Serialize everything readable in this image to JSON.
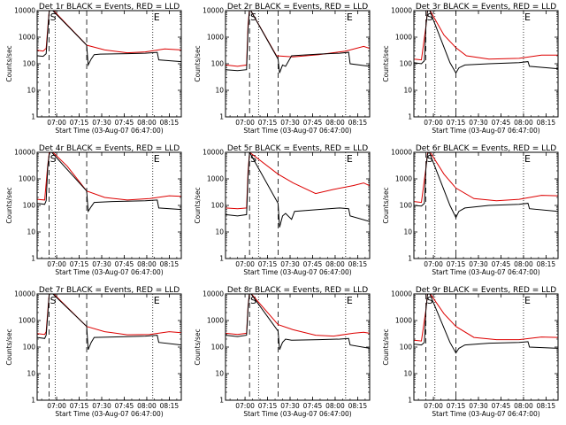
{
  "chart_data": {
    "type": "line",
    "scale": "log",
    "ylabel": "Counts/sec",
    "xlabel": "Start Time (03-Aug-07 06:47:00)",
    "ylim": [
      1,
      10000
    ],
    "xlim_minutes": [
      0,
      96
    ],
    "y_ticks": [
      1,
      10,
      100,
      1000,
      10000
    ],
    "y_tick_labels": [
      "1",
      "10",
      "100",
      "1000",
      "10000"
    ],
    "x_ticks": [
      13,
      28,
      43,
      58,
      73,
      88
    ],
    "x_tick_labels": [
      "07:00",
      "07:15",
      "07:30",
      "07:45",
      "08:00",
      "08:15"
    ],
    "legend": {
      "black": "Events",
      "red": "LLD"
    },
    "series_colors": {
      "events": "#000000",
      "lld": "#dd0000"
    },
    "panels": [
      {
        "title": "Det 1r BLACK = Events, RED = LLD",
        "markers": [
          {
            "t": 8,
            "label": "S",
            "style": "dashed"
          },
          {
            "t": 12,
            "label": "",
            "style": "dotted"
          },
          {
            "t": 33,
            "label": "",
            "style": "dashed"
          },
          {
            "t": 77,
            "label": "E",
            "style": "dotted"
          }
        ],
        "events": [
          [
            0,
            200
          ],
          [
            4,
            190
          ],
          [
            6,
            240
          ],
          [
            7,
            1500
          ],
          [
            8,
            9000
          ],
          [
            9,
            12000
          ],
          [
            33,
            500
          ],
          [
            34,
            90
          ],
          [
            36,
            150
          ],
          [
            38,
            220
          ],
          [
            42,
            230
          ],
          [
            60,
            240
          ],
          [
            72,
            250
          ],
          [
            80,
            270
          ],
          [
            81,
            140
          ],
          [
            96,
            120
          ]
        ],
        "lld": [
          [
            0,
            320
          ],
          [
            4,
            300
          ],
          [
            6,
            380
          ],
          [
            7,
            2000
          ],
          [
            8,
            9500
          ],
          [
            9,
            13000
          ],
          [
            33,
            500
          ],
          [
            45,
            330
          ],
          [
            60,
            260
          ],
          [
            72,
            280
          ],
          [
            85,
            360
          ],
          [
            96,
            330
          ]
        ]
      },
      {
        "title": "Det 2r BLACK = Events, RED = LLD",
        "markers": [
          {
            "t": 16,
            "label": "S",
            "style": "dashed"
          },
          {
            "t": 22,
            "label": "",
            "style": "dotted"
          },
          {
            "t": 35,
            "label": "",
            "style": "dashed"
          },
          {
            "t": 80,
            "label": "E",
            "style": "dotted"
          }
        ],
        "events": [
          [
            0,
            60
          ],
          [
            8,
            55
          ],
          [
            14,
            60
          ],
          [
            15,
            2000
          ],
          [
            16,
            12000
          ],
          [
            35,
            150
          ],
          [
            36,
            45
          ],
          [
            38,
            90
          ],
          [
            40,
            80
          ],
          [
            44,
            200
          ],
          [
            62,
            230
          ],
          [
            76,
            250
          ],
          [
            82,
            270
          ],
          [
            83,
            100
          ],
          [
            96,
            80
          ]
        ],
        "lld": [
          [
            0,
            90
          ],
          [
            8,
            80
          ],
          [
            14,
            90
          ],
          [
            15,
            3000
          ],
          [
            16,
            12000
          ],
          [
            34,
            200
          ],
          [
            45,
            180
          ],
          [
            62,
            220
          ],
          [
            80,
            300
          ],
          [
            92,
            450
          ],
          [
            96,
            380
          ]
        ]
      },
      {
        "title": "Det 3r BLACK = Events, RED = LLD",
        "markers": [
          {
            "t": 8,
            "label": "S",
            "style": "dashed"
          },
          {
            "t": 14,
            "label": "",
            "style": "dotted"
          },
          {
            "t": 28,
            "label": "",
            "style": "dashed"
          },
          {
            "t": 73,
            "label": "E",
            "style": "dotted"
          }
        ],
        "events": [
          [
            0,
            110
          ],
          [
            5,
            100
          ],
          [
            7,
            130
          ],
          [
            8,
            2500
          ],
          [
            9,
            9000
          ],
          [
            10,
            12000
          ],
          [
            24,
            110
          ],
          [
            28,
            45
          ],
          [
            30,
            70
          ],
          [
            34,
            90
          ],
          [
            50,
            100
          ],
          [
            70,
            110
          ],
          [
            76,
            120
          ],
          [
            77,
            80
          ],
          [
            96,
            65
          ]
        ],
        "lld": [
          [
            0,
            150
          ],
          [
            5,
            140
          ],
          [
            8,
            2500
          ],
          [
            9,
            9500
          ],
          [
            10,
            12000
          ],
          [
            20,
            1200
          ],
          [
            28,
            400
          ],
          [
            35,
            200
          ],
          [
            50,
            150
          ],
          [
            70,
            160
          ],
          [
            85,
            210
          ],
          [
            96,
            210
          ]
        ]
      },
      {
        "title": "Det 4r BLACK = Events, RED = LLD",
        "markers": [
          {
            "t": 8,
            "label": "S",
            "style": "dashed"
          },
          {
            "t": 12,
            "label": "",
            "style": "dotted"
          },
          {
            "t": 33,
            "label": "",
            "style": "dashed"
          },
          {
            "t": 77,
            "label": "E",
            "style": "dotted"
          }
        ],
        "events": [
          [
            0,
            120
          ],
          [
            5,
            110
          ],
          [
            6,
            150
          ],
          [
            7,
            2500
          ],
          [
            8,
            8000
          ],
          [
            9,
            11000
          ],
          [
            33,
            350
          ],
          [
            34,
            60
          ],
          [
            36,
            90
          ],
          [
            38,
            130
          ],
          [
            50,
            140
          ],
          [
            72,
            150
          ],
          [
            80,
            160
          ],
          [
            81,
            80
          ],
          [
            96,
            70
          ]
        ],
        "lld": [
          [
            0,
            170
          ],
          [
            5,
            160
          ],
          [
            7,
            3000
          ],
          [
            8,
            9000
          ],
          [
            9,
            12000
          ],
          [
            20,
            3000
          ],
          [
            33,
            350
          ],
          [
            45,
            200
          ],
          [
            60,
            160
          ],
          [
            75,
            180
          ],
          [
            88,
            230
          ],
          [
            96,
            220
          ]
        ]
      },
      {
        "title": "Det 5r BLACK = Events, RED = LLD",
        "markers": [
          {
            "t": 16,
            "label": "S",
            "style": "dashed"
          },
          {
            "t": 22,
            "label": "",
            "style": "dotted"
          },
          {
            "t": 35,
            "label": "",
            "style": "dashed"
          },
          {
            "t": 80,
            "label": "E",
            "style": "dotted"
          }
        ],
        "events": [
          [
            0,
            45
          ],
          [
            8,
            40
          ],
          [
            14,
            45
          ],
          [
            15,
            1200
          ],
          [
            16,
            10000
          ],
          [
            35,
            120
          ],
          [
            36,
            15
          ],
          [
            38,
            40
          ],
          [
            40,
            50
          ],
          [
            44,
            30
          ],
          [
            46,
            60
          ],
          [
            62,
            70
          ],
          [
            76,
            80
          ],
          [
            82,
            75
          ],
          [
            83,
            40
          ],
          [
            96,
            25
          ]
        ],
        "lld": [
          [
            0,
            80
          ],
          [
            8,
            75
          ],
          [
            14,
            80
          ],
          [
            15,
            2000
          ],
          [
            16,
            10000
          ],
          [
            35,
            1500
          ],
          [
            45,
            700
          ],
          [
            60,
            280
          ],
          [
            72,
            400
          ],
          [
            85,
            560
          ],
          [
            92,
            700
          ],
          [
            96,
            550
          ]
        ]
      },
      {
        "title": "Det 6r BLACK = Events, RED = LLD",
        "markers": [
          {
            "t": 8,
            "label": "S",
            "style": "dashed"
          },
          {
            "t": 14,
            "label": "",
            "style": "dotted"
          },
          {
            "t": 28,
            "label": "",
            "style": "dashed"
          },
          {
            "t": 73,
            "label": "E",
            "style": "dotted"
          }
        ],
        "events": [
          [
            0,
            100
          ],
          [
            5,
            95
          ],
          [
            7,
            120
          ],
          [
            8,
            2500
          ],
          [
            9,
            8000
          ],
          [
            10,
            11000
          ],
          [
            24,
            100
          ],
          [
            28,
            35
          ],
          [
            30,
            60
          ],
          [
            34,
            80
          ],
          [
            50,
            100
          ],
          [
            70,
            110
          ],
          [
            76,
            120
          ],
          [
            77,
            75
          ],
          [
            96,
            60
          ]
        ],
        "lld": [
          [
            0,
            140
          ],
          [
            5,
            130
          ],
          [
            8,
            2500
          ],
          [
            9,
            9000
          ],
          [
            10,
            12000
          ],
          [
            20,
            1500
          ],
          [
            28,
            450
          ],
          [
            40,
            180
          ],
          [
            55,
            150
          ],
          [
            70,
            170
          ],
          [
            85,
            240
          ],
          [
            96,
            230
          ]
        ]
      },
      {
        "title": "Det 7r BLACK = Events, RED = LLD",
        "markers": [
          {
            "t": 8,
            "label": "S",
            "style": "dashed"
          },
          {
            "t": 12,
            "label": "",
            "style": "dotted"
          },
          {
            "t": 33,
            "label": "",
            "style": "dashed"
          },
          {
            "t": 77,
            "label": "E",
            "style": "dotted"
          }
        ],
        "events": [
          [
            0,
            230
          ],
          [
            5,
            210
          ],
          [
            6,
            280
          ],
          [
            7,
            1500
          ],
          [
            8,
            9000
          ],
          [
            9,
            12000
          ],
          [
            33,
            600
          ],
          [
            34,
            80
          ],
          [
            36,
            150
          ],
          [
            38,
            230
          ],
          [
            50,
            240
          ],
          [
            72,
            260
          ],
          [
            80,
            280
          ],
          [
            81,
            150
          ],
          [
            96,
            120
          ]
        ],
        "lld": [
          [
            0,
            320
          ],
          [
            5,
            300
          ],
          [
            6,
            380
          ],
          [
            7,
            2000
          ],
          [
            8,
            9500
          ],
          [
            9,
            13000
          ],
          [
            33,
            600
          ],
          [
            45,
            380
          ],
          [
            60,
            290
          ],
          [
            75,
            300
          ],
          [
            88,
            380
          ],
          [
            96,
            350
          ]
        ]
      },
      {
        "title": "Det 8r BLACK = Events, RED = LLD",
        "markers": [
          {
            "t": 16,
            "label": "S",
            "style": "dashed"
          },
          {
            "t": 22,
            "label": "",
            "style": "dotted"
          },
          {
            "t": 35,
            "label": "",
            "style": "dashed"
          },
          {
            "t": 80,
            "label": "E",
            "style": "dotted"
          }
        ],
        "events": [
          [
            0,
            280
          ],
          [
            8,
            250
          ],
          [
            14,
            280
          ],
          [
            15,
            3000
          ],
          [
            16,
            12000
          ],
          [
            35,
            400
          ],
          [
            36,
            80
          ],
          [
            38,
            150
          ],
          [
            40,
            200
          ],
          [
            44,
            180
          ],
          [
            62,
            190
          ],
          [
            76,
            200
          ],
          [
            82,
            210
          ],
          [
            83,
            120
          ],
          [
            96,
            90
          ]
        ],
        "lld": [
          [
            0,
            330
          ],
          [
            8,
            300
          ],
          [
            14,
            330
          ],
          [
            15,
            3500
          ],
          [
            16,
            12000
          ],
          [
            35,
            700
          ],
          [
            45,
            450
          ],
          [
            60,
            280
          ],
          [
            72,
            260
          ],
          [
            85,
            330
          ],
          [
            92,
            360
          ],
          [
            96,
            330
          ]
        ]
      },
      {
        "title": "Det 9r BLACK = Events, RED = LLD",
        "markers": [
          {
            "t": 8,
            "label": "S",
            "style": "dashed"
          },
          {
            "t": 14,
            "label": "",
            "style": "dotted"
          },
          {
            "t": 28,
            "label": "",
            "style": "dashed"
          },
          {
            "t": 73,
            "label": "E",
            "style": "dotted"
          }
        ],
        "events": [
          [
            0,
            130
          ],
          [
            5,
            120
          ],
          [
            7,
            150
          ],
          [
            8,
            2500
          ],
          [
            9,
            9000
          ],
          [
            10,
            12000
          ],
          [
            24,
            150
          ],
          [
            28,
            60
          ],
          [
            30,
            90
          ],
          [
            34,
            120
          ],
          [
            50,
            140
          ],
          [
            70,
            150
          ],
          [
            76,
            160
          ],
          [
            77,
            100
          ],
          [
            96,
            90
          ]
        ],
        "lld": [
          [
            0,
            180
          ],
          [
            5,
            170
          ],
          [
            8,
            2500
          ],
          [
            9,
            9500
          ],
          [
            10,
            12000
          ],
          [
            20,
            1800
          ],
          [
            28,
            600
          ],
          [
            40,
            230
          ],
          [
            55,
            190
          ],
          [
            70,
            190
          ],
          [
            85,
            240
          ],
          [
            96,
            230
          ]
        ]
      }
    ]
  }
}
